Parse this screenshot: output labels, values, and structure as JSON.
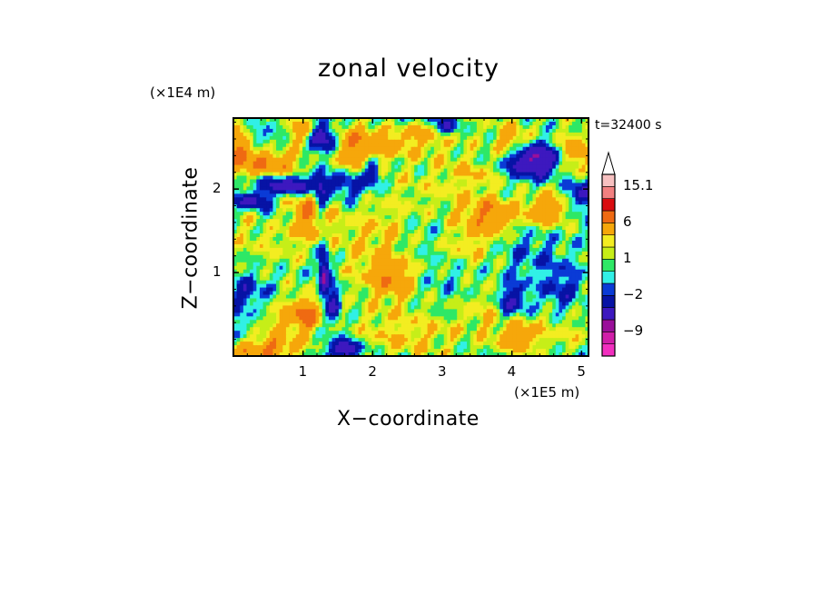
{
  "chart_data": {
    "type": "heatmap",
    "title": "zonal velocity",
    "xlabel": "X−coordinate",
    "ylabel": "Z−coordinate",
    "x_unit": "(×1E5 m)",
    "y_unit": "(×1E4 m)",
    "annotation": "t=32400 s",
    "xlim": [
      0,
      5.1
    ],
    "ylim": [
      0,
      2.85
    ],
    "x_ticks": [
      {
        "value": 1,
        "label": "1"
      },
      {
        "value": 2,
        "label": "2"
      },
      {
        "value": 3,
        "label": "3"
      },
      {
        "value": 4,
        "label": "4"
      },
      {
        "value": 5,
        "label": "5"
      }
    ],
    "y_ticks": [
      {
        "value": 1,
        "label": "1"
      },
      {
        "value": 2,
        "label": "2"
      }
    ],
    "colorbar": {
      "levels": [
        -13,
        -11,
        -9,
        -7,
        -4,
        -2,
        -1,
        0,
        1,
        2,
        3,
        6,
        9,
        12,
        15.1
      ],
      "colors": [
        "#f22fbf",
        "#d01ea8",
        "#9a0f9a",
        "#3d18bf",
        "#0713a5",
        "#0a3bd6",
        "#31f0e6",
        "#2ee866",
        "#c6ee18",
        "#f3ed21",
        "#f6a70a",
        "#ef6a12",
        "#d90c10",
        "#f28080",
        "#f7c0c0"
      ],
      "labels": [
        {
          "value": 15.1,
          "label": "15.1"
        },
        {
          "value": 6,
          "label": "6"
        },
        {
          "value": 1,
          "label": "1"
        },
        {
          "value": -2,
          "label": "−2"
        },
        {
          "value": -9,
          "label": "−9"
        }
      ],
      "extend": "max"
    },
    "field_features": [
      {
        "x": 0.1,
        "z": 2.45,
        "rx": 0.25,
        "rz": 0.28,
        "amp": 6
      },
      {
        "x": 0.45,
        "z": 1.55,
        "rx": 0.55,
        "rz": 0.5,
        "amp": 1.6
      },
      {
        "x": 0.35,
        "z": 2.62,
        "rx": 0.3,
        "rz": 0.15,
        "amp": -2.5
      },
      {
        "x": 0.2,
        "z": 0.78,
        "rx": 0.35,
        "rz": 0.22,
        "amp": -3
      },
      {
        "x": 0.1,
        "z": 0.35,
        "rx": 0.3,
        "rz": 0.3,
        "amp": -1.5
      },
      {
        "x": 0.6,
        "z": 2.3,
        "rx": 0.35,
        "rz": 0.16,
        "amp": 5
      },
      {
        "x": 0.8,
        "z": 2.05,
        "rx": 0.5,
        "rz": 0.12,
        "amp": -7
      },
      {
        "x": 0.25,
        "z": 1.85,
        "rx": 0.3,
        "rz": 0.1,
        "amp": -6
      },
      {
        "x": 0.6,
        "z": 1.65,
        "rx": 0.25,
        "rz": 0.15,
        "amp": -2
      },
      {
        "x": 0.95,
        "z": 2.7,
        "rx": 0.2,
        "rz": 0.15,
        "amp": 4
      },
      {
        "x": 1.1,
        "z": 1.7,
        "rx": 0.3,
        "rz": 0.3,
        "amp": 5
      },
      {
        "x": 1.05,
        "z": 0.5,
        "rx": 0.2,
        "rz": 0.2,
        "amp": 6
      },
      {
        "x": 0.7,
        "z": 0.4,
        "rx": 0.35,
        "rz": 0.3,
        "amp": 2.5
      },
      {
        "x": 0.4,
        "z": 0.08,
        "rx": 0.5,
        "rz": 0.15,
        "amp": 5
      },
      {
        "x": 1.3,
        "z": 2.6,
        "rx": 0.18,
        "rz": 0.18,
        "amp": -8
      },
      {
        "x": 1.3,
        "z": 1.0,
        "rx": 0.08,
        "rz": 0.3,
        "amp": -8
      },
      {
        "x": 1.45,
        "z": 0.6,
        "rx": 0.1,
        "rz": 0.25,
        "amp": -5
      },
      {
        "x": 1.25,
        "z": 1.9,
        "rx": 0.1,
        "rz": 0.35,
        "amp": -5
      },
      {
        "x": 1.8,
        "z": 2.5,
        "rx": 0.45,
        "rz": 0.3,
        "amp": 5
      },
      {
        "x": 1.65,
        "z": 2.05,
        "rx": 0.25,
        "rz": 0.2,
        "amp": -4
      },
      {
        "x": 2.0,
        "z": 2.2,
        "rx": 0.12,
        "rz": 0.2,
        "amp": -6
      },
      {
        "x": 2.1,
        "z": 1.3,
        "rx": 0.6,
        "rz": 0.6,
        "amp": 2.5
      },
      {
        "x": 2.3,
        "z": 0.9,
        "rx": 0.3,
        "rz": 0.2,
        "amp": 4
      },
      {
        "x": 2.5,
        "z": 0.25,
        "rx": 0.8,
        "rz": 0.3,
        "amp": 2.3
      },
      {
        "x": 2.7,
        "z": 2.65,
        "rx": 0.6,
        "rz": 0.25,
        "amp": 3
      },
      {
        "x": 3.0,
        "z": 2.0,
        "rx": 0.6,
        "rz": 0.3,
        "amp": 1.2
      },
      {
        "x": 2.8,
        "z": 1.4,
        "rx": 0.45,
        "rz": 0.3,
        "amp": -1.5
      },
      {
        "x": 3.1,
        "z": 0.9,
        "rx": 0.5,
        "rz": 0.3,
        "amp": -1.2
      },
      {
        "x": 3.05,
        "z": 2.75,
        "rx": 0.15,
        "rz": 0.12,
        "amp": -6
      },
      {
        "x": 3.5,
        "z": 2.2,
        "rx": 0.4,
        "rz": 0.2,
        "amp": 2
      },
      {
        "x": 3.7,
        "z": 1.7,
        "rx": 0.4,
        "rz": 0.2,
        "amp": 5
      },
      {
        "x": 3.35,
        "z": 1.35,
        "rx": 0.5,
        "rz": 0.3,
        "amp": 2.5
      },
      {
        "x": 3.8,
        "z": 0.6,
        "rx": 0.5,
        "rz": 0.35,
        "amp": 2.5
      },
      {
        "x": 4.1,
        "z": 0.25,
        "rx": 0.3,
        "rz": 0.2,
        "amp": 4
      },
      {
        "x": 4.0,
        "z": 0.65,
        "rx": 0.25,
        "rz": 0.25,
        "amp": -6
      },
      {
        "x": 4.0,
        "z": 2.5,
        "rx": 0.25,
        "rz": 0.25,
        "amp": 6
      },
      {
        "x": 4.15,
        "z": 2.35,
        "rx": 0.35,
        "rz": 0.2,
        "amp": -9
      },
      {
        "x": 4.6,
        "z": 2.35,
        "rx": 0.3,
        "rz": 0.2,
        "amp": -5
      },
      {
        "x": 4.2,
        "z": 1.25,
        "rx": 0.5,
        "rz": 0.35,
        "amp": -1.8
      },
      {
        "x": 4.5,
        "z": 1.75,
        "rx": 0.3,
        "rz": 0.2,
        "amp": 5
      },
      {
        "x": 4.85,
        "z": 2.4,
        "rx": 0.25,
        "rz": 0.25,
        "amp": 6
      },
      {
        "x": 5.0,
        "z": 1.95,
        "rx": 0.2,
        "rz": 0.2,
        "amp": -5
      },
      {
        "x": 4.7,
        "z": 0.8,
        "rx": 0.3,
        "rz": 0.3,
        "amp": -3
      },
      {
        "x": 4.8,
        "z": 0.3,
        "rx": 0.4,
        "rz": 0.25,
        "amp": 1.5
      },
      {
        "x": 2.4,
        "z": 2.85,
        "rx": 0.6,
        "rz": 0.12,
        "amp": -2.5
      },
      {
        "x": 1.6,
        "z": 0.08,
        "rx": 0.25,
        "rz": 0.12,
        "amp": -7
      }
    ]
  }
}
